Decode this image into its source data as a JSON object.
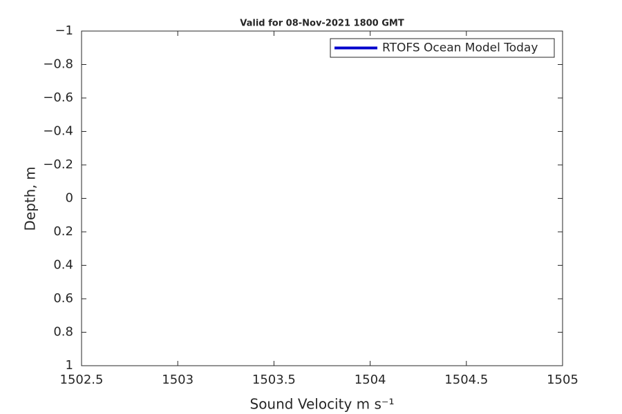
{
  "chart_data": {
    "type": "line",
    "title": "Valid for 08-Nov-2021 1800 GMT",
    "x_label": "Sound Velocity m s⁻¹",
    "y_label": "Depth, m",
    "series": [
      {
        "name": "RTOFS Ocean Model Today",
        "color": "#0000cc",
        "x": [],
        "values": []
      }
    ],
    "xlim": [
      1502.5,
      1505
    ],
    "xticks": [
      1502.5,
      1503,
      1503.5,
      1504,
      1504.5,
      1505
    ],
    "ylim": [
      -1,
      1
    ],
    "y_reversed": true,
    "yticks": [
      {
        "value": -1,
        "label": "−1"
      },
      {
        "value": -0.8,
        "label": "−0.8"
      },
      {
        "value": -0.6,
        "label": "−0.6"
      },
      {
        "value": -0.4,
        "label": "−0.4"
      },
      {
        "value": -0.2,
        "label": "−0.2"
      },
      0,
      0.2,
      0.4,
      0.6,
      0.8,
      1
    ],
    "grid": false,
    "legend": "top-right"
  }
}
